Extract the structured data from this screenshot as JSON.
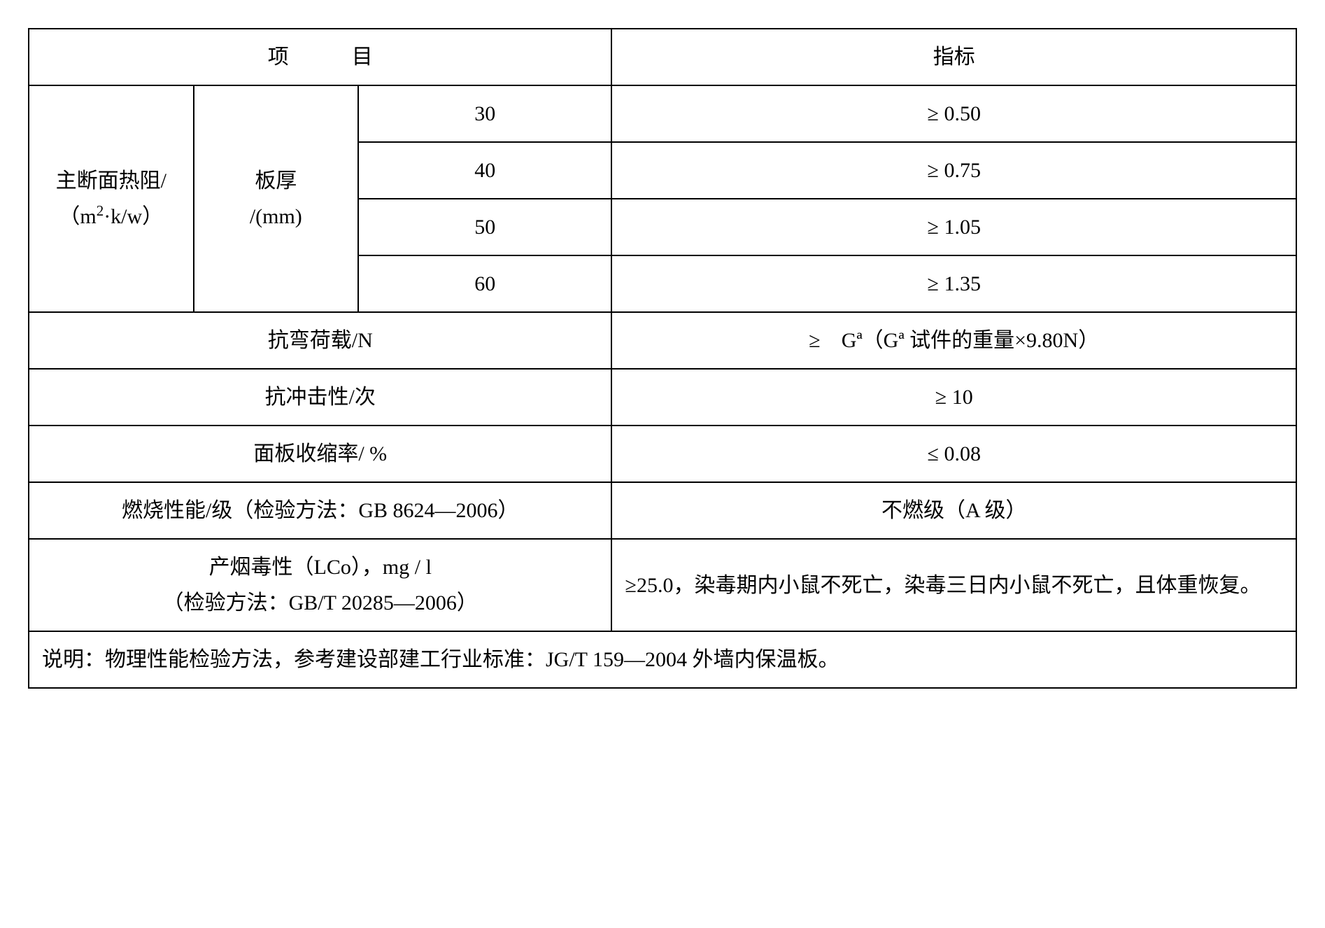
{
  "header": {
    "col1": "项　　　目",
    "col2": "指标"
  },
  "thermal": {
    "label": "主断面热阻/（m²·k/w）",
    "thickness_label": "板厚/(mm)",
    "rows": [
      {
        "thickness": "30",
        "value": "≥ 0.50"
      },
      {
        "thickness": "40",
        "value": "≥ 0.75"
      },
      {
        "thickness": "50",
        "value": "≥ 1.05"
      },
      {
        "thickness": "60",
        "value": "≥ 1.35"
      }
    ]
  },
  "bending": {
    "label": "抗弯荷载/N",
    "value": "≥　Gª（Gª 试件的重量×9.80N）"
  },
  "impact": {
    "label": "抗冲击性/次",
    "value": "≥ 10"
  },
  "shrinkage": {
    "label": "面板收缩率/ %",
    "value": "≤ 0.08"
  },
  "combustion": {
    "label": "燃烧性能/级（检验方法：GB 8624—2006）",
    "value": "不燃级（A 级）"
  },
  "toxicity": {
    "label": "产烟毒性（LCo），mg / l\n（检验方法：GB/T 20285—2006）",
    "value": "≥25.0，染毒期内小鼠不死亡，染毒三日内小鼠不死亡，且体重恢复。"
  },
  "note": "说明：物理性能检验方法，参考建设部建工行业标准：JG/T 159—2004 外墙内保温板。",
  "col_widths": [
    "13%",
    "13%",
    "20%",
    "54%"
  ]
}
